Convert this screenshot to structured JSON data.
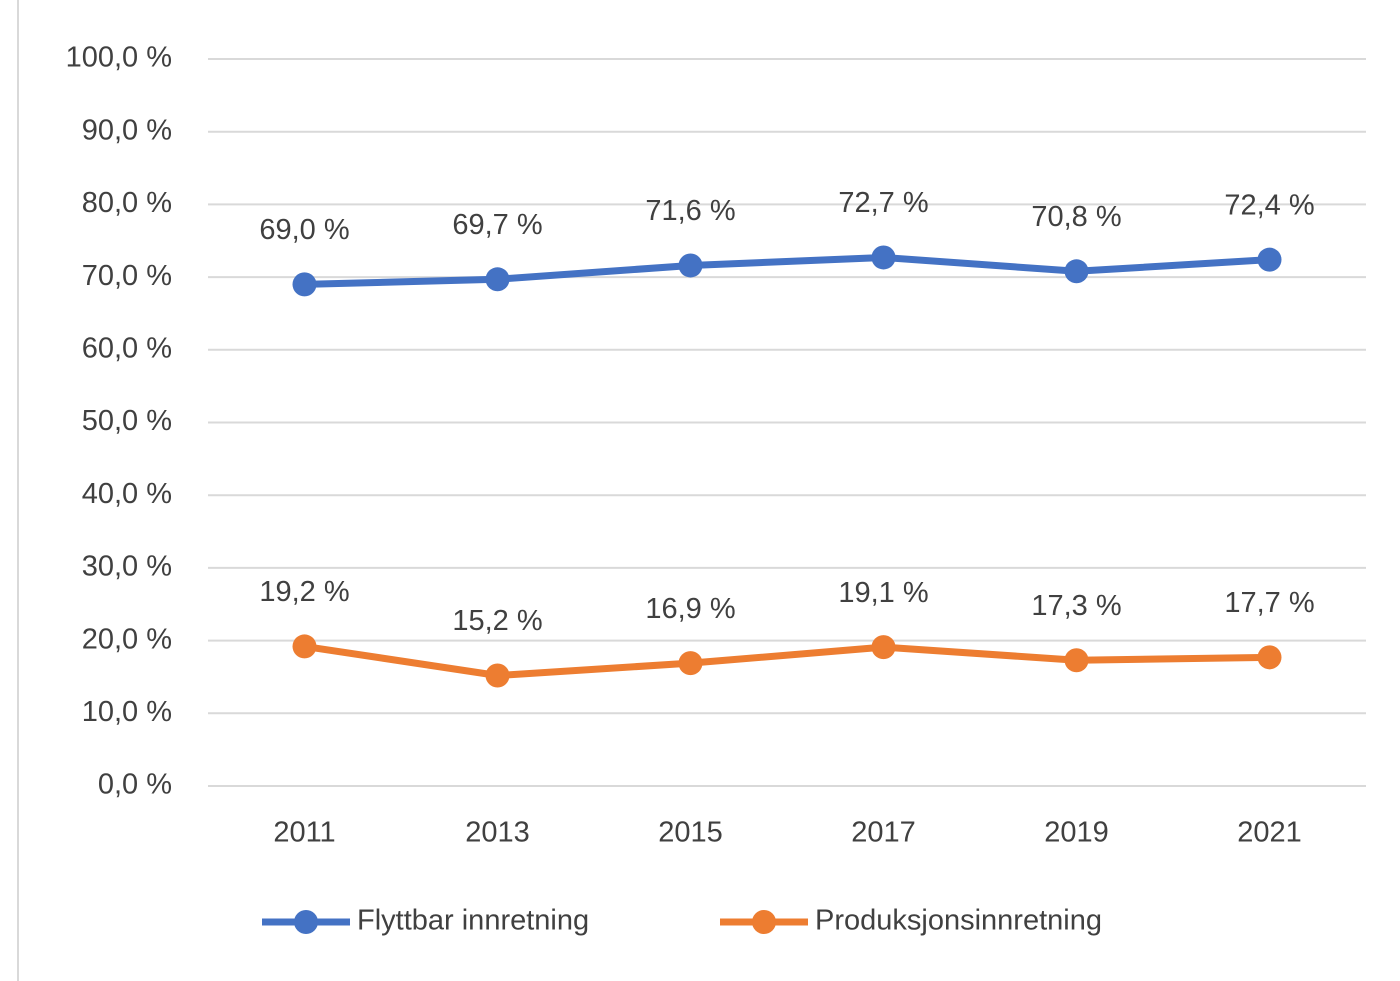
{
  "chart_data": {
    "type": "line",
    "categories": [
      "2011",
      "2013",
      "2015",
      "2017",
      "2019",
      "2021"
    ],
    "series": [
      {
        "name": "Flyttbar innretning",
        "color": "#4472c4",
        "values": [
          69.0,
          69.7,
          71.6,
          72.7,
          70.8,
          72.4
        ],
        "value_labels": [
          "69,0 %",
          "69,7 %",
          "71,6 %",
          "72,7 %",
          "70,8 %",
          "72,4 %"
        ]
      },
      {
        "name": "Produksjonsinnretning",
        "color": "#ed7d31",
        "values": [
          19.2,
          15.2,
          16.9,
          19.1,
          17.3,
          17.7
        ],
        "value_labels": [
          "19,2 %",
          "15,2 %",
          "16,9 %",
          "19,1 %",
          "17,3 %",
          "17,7 %"
        ]
      }
    ],
    "ylim": [
      0,
      100
    ],
    "yticks": [
      {
        "value": 0,
        "label": "0,0 %"
      },
      {
        "value": 10,
        "label": "10,0 %"
      },
      {
        "value": 20,
        "label": "20,0 %"
      },
      {
        "value": 30,
        "label": "30,0 %"
      },
      {
        "value": 40,
        "label": "40,0 %"
      },
      {
        "value": 50,
        "label": "50,0 %"
      },
      {
        "value": 60,
        "label": "60,0 %"
      },
      {
        "value": 70,
        "label": "70,0 %"
      },
      {
        "value": 80,
        "label": "80,0 %"
      },
      {
        "value": 90,
        "label": "90,0 %"
      },
      {
        "value": 100,
        "label": "100,0 %"
      }
    ],
    "grid": true,
    "legend": "bottom"
  }
}
